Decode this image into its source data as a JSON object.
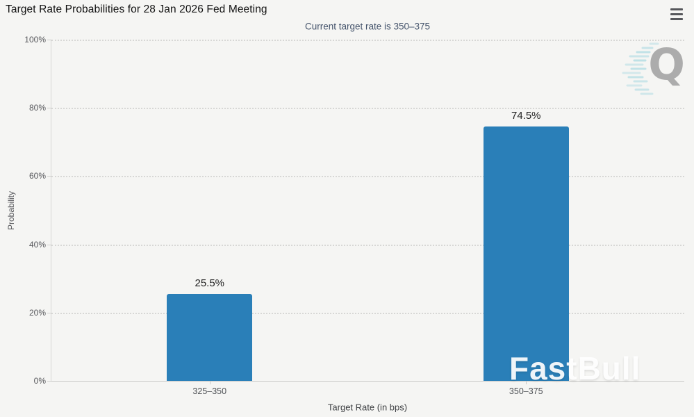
{
  "header": {
    "title": "Target Rate Probabilities for 28 Jan 2026 Fed Meeting",
    "subtitle": "Current target rate is 350–375"
  },
  "chart_data": {
    "type": "bar",
    "title": "Target Rate Probabilities for 28 Jan 2026 Fed Meeting",
    "subtitle": "Current target rate is 350–375",
    "categories": [
      "325–350",
      "350–375"
    ],
    "values": [
      25.5,
      74.5
    ],
    "value_labels": [
      "25.5%",
      "74.5%"
    ],
    "xlabel": "Target Rate (in bps)",
    "ylabel": "Probability",
    "ylim": [
      0,
      100
    ],
    "y_ticks": [
      "0%",
      "20%",
      "40%",
      "60%",
      "80%",
      "100%"
    ],
    "grid": "horizontal dotted",
    "legend": "none",
    "bar_color": "#2a7fb8",
    "background_color": "#f5f5f3"
  },
  "watermarks": {
    "fastbull": "FastBull",
    "q_logo": "Q"
  }
}
